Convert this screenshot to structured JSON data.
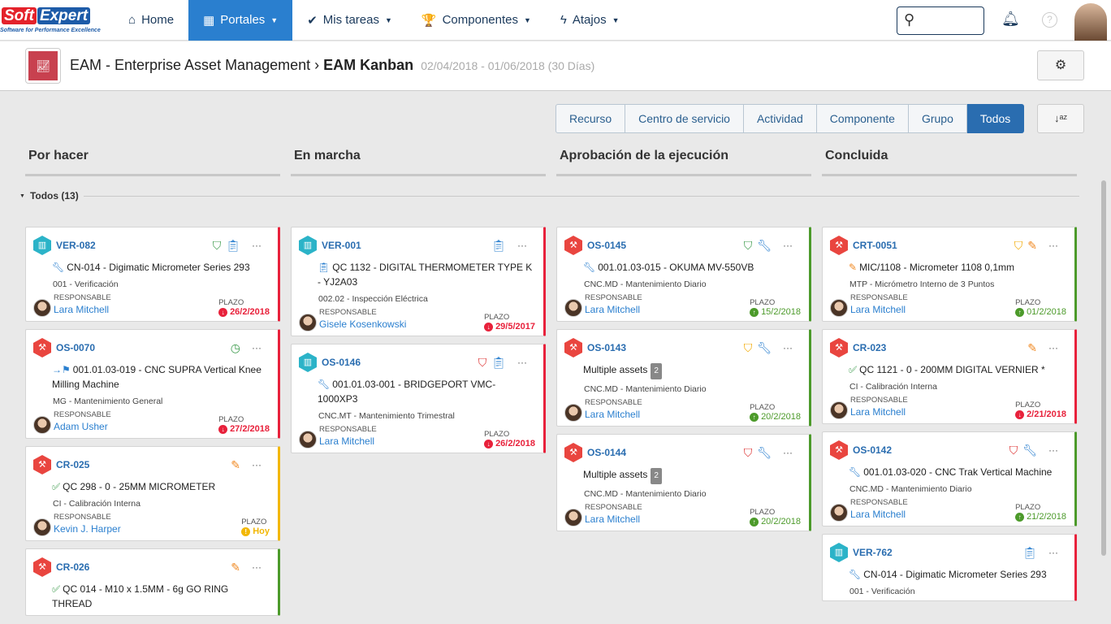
{
  "brand": {
    "logo_soft": "Soft",
    "logo_expert": "Expert",
    "tagline": "Software for Performance Excellence"
  },
  "nav": [
    {
      "label": "Home",
      "icon": "home-icon",
      "glyph": "⌂"
    },
    {
      "label": "Portales",
      "icon": "grid-icon",
      "glyph": "▦",
      "active": true
    },
    {
      "label": "Mis tareas",
      "icon": "check-icon",
      "glyph": "✔"
    },
    {
      "label": "Componentes",
      "icon": "trophy-icon",
      "glyph": "🏆"
    },
    {
      "label": "Atajos",
      "icon": "bolt-icon",
      "glyph": "ϟ"
    }
  ],
  "header": {
    "module": "EAM - Enterprise Asset Management",
    "separator": "›",
    "page": "EAM Kanban",
    "dates": "02/04/2018 - 01/06/2018 (30 Días)"
  },
  "filters": [
    "Recurso",
    "Centro de servicio",
    "Actividad",
    "Componente",
    "Grupo",
    "Todos"
  ],
  "active_filter": "Todos",
  "group": "Todos (13)",
  "labels": {
    "responsable": "RESPONSABLE",
    "plazo": "PLAZO"
  },
  "colors": {
    "accent": "#2a7fcf",
    "late": "#e8213b",
    "ok": "#4c9a2a",
    "today": "#f2b705"
  },
  "columns": [
    {
      "title": "Por hacer",
      "cards": [
        {
          "id": "VER-082",
          "type": "teal",
          "status": "red",
          "actions": [
            "shield-green",
            "clipboard"
          ],
          "title_icon": "wrench",
          "title": "CN-014 - Digimatic Micrometer Series 293",
          "sub": "001 - Verificación",
          "resp": "Lara Mitchell",
          "due": "26/2/2018",
          "due_state": "late"
        },
        {
          "id": "OS-0070",
          "type": "red",
          "status": "red",
          "actions": [
            "clock"
          ],
          "title_icon": "arrow-flag",
          "title": "001.01.03-019 - CNC SUPRA Vertical Knee Milling Machine",
          "sub": "MG - Mantenimiento General",
          "resp": "Adam Usher",
          "due": "27/2/2018",
          "due_state": "late"
        },
        {
          "id": "CR-025",
          "type": "red",
          "status": "yellow",
          "actions": [
            "caliper"
          ],
          "title_icon": "check",
          "title": "QC 298 - 0 - 25MM MICROMETER",
          "sub": "CI - Calibración Interna",
          "resp": "Kevin J. Harper",
          "due": "Hoy",
          "due_state": "today"
        },
        {
          "id": "CR-026",
          "type": "red",
          "status": "green",
          "actions": [
            "caliper"
          ],
          "title_icon": "check",
          "title": "QC 014 - M10 x 1.5MM - 6g GO RING THREAD"
        }
      ]
    },
    {
      "title": "En marcha",
      "cards": [
        {
          "id": "VER-001",
          "type": "teal",
          "status": "red",
          "actions": [
            "clipboard"
          ],
          "title_icon": "clipboard",
          "title": "QC 1132 - DIGITAL THERMOMETER TYPE K - YJ2A03",
          "sub": "002.02 - Inspección Eléctrica",
          "resp": "Gisele Kosenkowski",
          "due": "29/5/2017",
          "due_state": "late"
        },
        {
          "id": "OS-0146",
          "type": "teal",
          "status": "red",
          "actions": [
            "shield-red",
            "clipboard"
          ],
          "title_icon": "wrench",
          "title": "001.01.03-001 - BRIDGEPORT VMC-1000XP3",
          "sub": "CNC.MT - Mantenimiento Trimestral",
          "resp": "Lara Mitchell",
          "due": "26/2/2018",
          "due_state": "late"
        }
      ]
    },
    {
      "title": "Aprobación de la ejecución",
      "cards": [
        {
          "id": "OS-0145",
          "type": "red",
          "status": "green",
          "actions": [
            "shield-green",
            "wrench"
          ],
          "title_icon": "wrench",
          "title": "001.01.03-015 - OKUMA MV-550VB",
          "sub": "CNC.MD - Mantenimiento Diario",
          "resp": "Lara Mitchell",
          "due": "15/2/2018",
          "due_state": "ok"
        },
        {
          "id": "OS-0143",
          "type": "red",
          "status": "green",
          "actions": [
            "shield-yellow",
            "wrench"
          ],
          "title": "Multiple assets",
          "multi": "2",
          "sub": "CNC.MD - Mantenimiento Diario",
          "resp": "Lara Mitchell",
          "due": "20/2/2018",
          "due_state": "ok"
        },
        {
          "id": "OS-0144",
          "type": "red",
          "status": "green",
          "actions": [
            "shield-red",
            "wrench"
          ],
          "title": "Multiple assets",
          "multi": "2",
          "sub": "CNC.MD - Mantenimiento Diario",
          "resp": "Lara Mitchell",
          "due": "20/2/2018",
          "due_state": "ok"
        }
      ]
    },
    {
      "title": "Concluida",
      "cards": [
        {
          "id": "CRT-0051",
          "type": "red",
          "status": "green",
          "actions": [
            "shield-yellow",
            "caliper"
          ],
          "title_icon": "caliper",
          "title": "MIC/1108 - Micrometer 1108 0,1mm",
          "sub": "MTP - Micrómetro Interno de 3 Puntos",
          "resp": "Lara Mitchell",
          "due": "01/2/2018",
          "due_state": "ok"
        },
        {
          "id": "CR-023",
          "type": "red",
          "status": "red",
          "actions": [
            "caliper"
          ],
          "title_icon": "check",
          "title": "QC 1121 - 0 - 200MM DIGITAL VERNIER *",
          "sub": "CI - Calibración Interna",
          "resp": "Lara Mitchell",
          "due": "2/21/2018",
          "due_state": "late"
        },
        {
          "id": "OS-0142",
          "type": "red",
          "status": "green",
          "actions": [
            "shield-red",
            "wrench"
          ],
          "title_icon": "wrench",
          "title": "001.01.03-020 - CNC Trak Vertical Machine",
          "sub": "CNC.MD - Mantenimiento Diario",
          "resp": "Lara Mitchell",
          "due": "21/2/2018",
          "due_state": "ok"
        },
        {
          "id": "VER-762",
          "type": "teal",
          "status": "red",
          "actions": [
            "clipboard"
          ],
          "title_icon": "wrench",
          "title": "CN-014 - Digimatic Micrometer Series 293",
          "sub": "001 - Verificación"
        }
      ]
    }
  ]
}
